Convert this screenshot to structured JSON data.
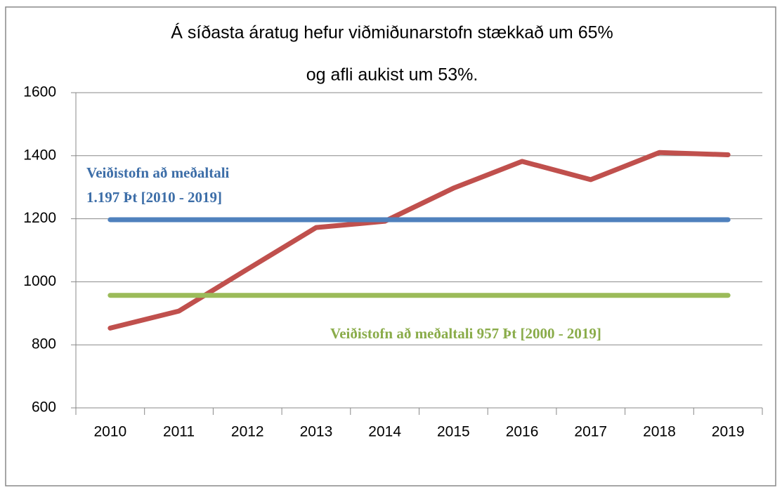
{
  "chart_data": {
    "type": "line",
    "title": [
      "Á síðasta áratug hefur viðmiðunarstofn stækkað um 65%",
      "og afli aukist um 53%."
    ],
    "categories": [
      "2010",
      "2011",
      "2012",
      "2013",
      "2014",
      "2015",
      "2016",
      "2017",
      "2018",
      "2019"
    ],
    "series": [
      {
        "color": "#c0504d",
        "values": [
          853,
          907,
          1040,
          1172,
          1192,
          1297,
          1382,
          1324,
          1410,
          1403
        ]
      },
      {
        "color": "#4f81bd",
        "values": [
          1197,
          1197,
          1197,
          1197,
          1197,
          1197,
          1197,
          1197,
          1197,
          1197
        ]
      },
      {
        "color": "#9bbb59",
        "values": [
          957,
          957,
          957,
          957,
          957,
          957,
          957,
          957,
          957,
          957
        ]
      }
    ],
    "annotations": [
      {
        "lines": [
          "Veiðistofn að meðaltali",
          "1.197 Þt [2010 - 2019]"
        ],
        "color": "#3d6ea8"
      },
      {
        "lines": [
          "Veiðistofn að meðaltali 957 Þt [2000 - 2019]"
        ],
        "color": "#8aac4a"
      }
    ],
    "ylim": [
      600,
      1600
    ],
    "yticks": [
      600,
      800,
      1000,
      1200,
      1400,
      1600
    ],
    "grid": true
  }
}
